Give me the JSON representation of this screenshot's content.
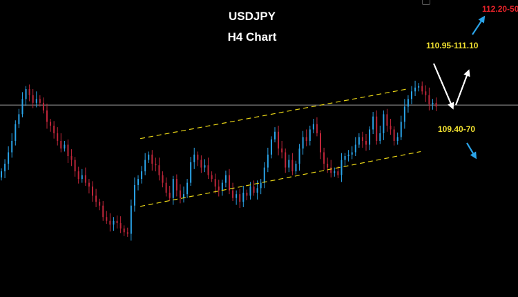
{
  "chart_data": {
    "type": "candlestick",
    "title": "USDJPY",
    "subtitle": "H4 Chart",
    "x_range": [
      0,
      130
    ],
    "y_range": [
      108.45,
      112.35
    ],
    "grid": false,
    "colors": {
      "background": "#000000",
      "bull": "#2aa3e8",
      "bear": "#c0263a",
      "channel": "#e8d416",
      "price_line": "#9a9a9a",
      "level_upper": "#f0e030",
      "level_lower": "#f0e030",
      "target_top": "#e8232a",
      "arrow_blue": "#2aa3e8",
      "arrow_white": "#ffffff"
    },
    "current_price": 110.97,
    "channel": {
      "upper": [
        [
          40,
          110.53
        ],
        [
          116,
          111.18
        ]
      ],
      "lower": [
        [
          40,
          109.64
        ],
        [
          120,
          110.36
        ]
      ]
    },
    "levels": [
      {
        "label": "110.95-111.10",
        "role": "resistance"
      },
      {
        "label": "109.40-70",
        "role": "support"
      },
      {
        "label": "112.20-50",
        "role": "upside target"
      }
    ],
    "closes": [
      110.1,
      110.2,
      110.35,
      110.5,
      110.72,
      110.85,
      111.05,
      111.18,
      111.1,
      111.0,
      111.05,
      111.0,
      110.9,
      110.75,
      110.7,
      110.6,
      110.5,
      110.4,
      110.45,
      110.3,
      110.25,
      110.1,
      110.0,
      110.05,
      109.95,
      109.9,
      109.78,
      109.7,
      109.65,
      109.5,
      109.45,
      109.4,
      109.45,
      109.42,
      109.35,
      109.3,
      109.28,
      109.65,
      109.92,
      110.0,
      110.1,
      110.25,
      110.32,
      110.2,
      110.18,
      110.05,
      109.95,
      109.82,
      109.75,
      110.0,
      109.85,
      109.75,
      109.8,
      109.95,
      110.22,
      110.32,
      110.25,
      110.15,
      110.18,
      110.05,
      110.0,
      109.9,
      109.85,
      109.95,
      110.05,
      109.85,
      109.75,
      109.8,
      109.7,
      109.82,
      109.78,
      109.9,
      109.82,
      109.88,
      109.95,
      110.15,
      110.32,
      110.52,
      110.62,
      110.4,
      110.35,
      110.15,
      110.25,
      110.1,
      110.2,
      110.4,
      110.55,
      110.5,
      110.65,
      110.72,
      110.6,
      110.35,
      110.2,
      110.15,
      110.08,
      110.1,
      110.05,
      110.25,
      110.3,
      110.32,
      110.35,
      110.45,
      110.55,
      110.5,
      110.45,
      110.65,
      110.82,
      110.5,
      110.6,
      110.85,
      110.7,
      110.65,
      110.5,
      110.55,
      110.75,
      110.95,
      111.05,
      111.15,
      111.2,
      111.22,
      111.15,
      111.1,
      110.98,
      111.0,
      110.95
    ]
  },
  "annotations": {
    "arrows_blue": [
      [
        [
          684,
          50
        ],
        [
          700,
          26
        ]
      ],
      [
        [
          676,
          207
        ],
        [
          688,
          227
        ]
      ]
    ],
    "arrow_white_down": [
      [
        628,
        92
      ],
      [
        655,
        155
      ]
    ],
    "arrow_white_up": [
      [
        660,
        152
      ],
      [
        678,
        104
      ]
    ]
  }
}
